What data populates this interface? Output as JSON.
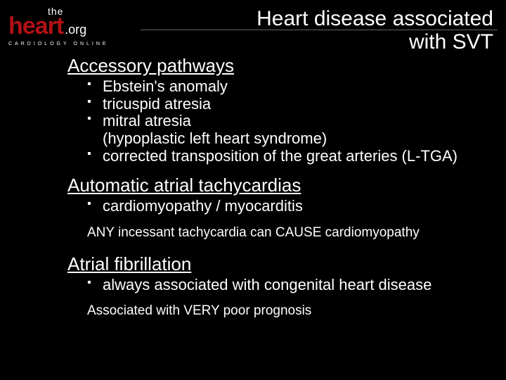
{
  "logo": {
    "the": "the",
    "heart": "heart",
    "org": ".org",
    "tagline": "CARDIOLOGY ONLINE"
  },
  "title_line1": "Heart disease associated",
  "title_line2": "with SVT",
  "sections": [
    {
      "heading": "Accessory pathways",
      "bullets": [
        "Ebstein's anomaly",
        "tricuspid atresia",
        "mitral atresia\n(hypoplastic left heart syndrome)",
        "corrected transposition of the great arteries (L-TGA)"
      ],
      "note": ""
    },
    {
      "heading": "Automatic atrial tachycardias",
      "bullets": [
        "cardiomyopathy / myocarditis"
      ],
      "note": "ANY incessant tachycardia can CAUSE cardiomyopathy"
    },
    {
      "heading": "Atrial fibrillation",
      "bullets": [
        "always associated with congenital heart disease"
      ],
      "note": "Associated with VERY poor prognosis"
    }
  ],
  "colors": {
    "background": "#000000",
    "text": "#ffffff",
    "accent": "#b01116",
    "divider": "#666666"
  }
}
